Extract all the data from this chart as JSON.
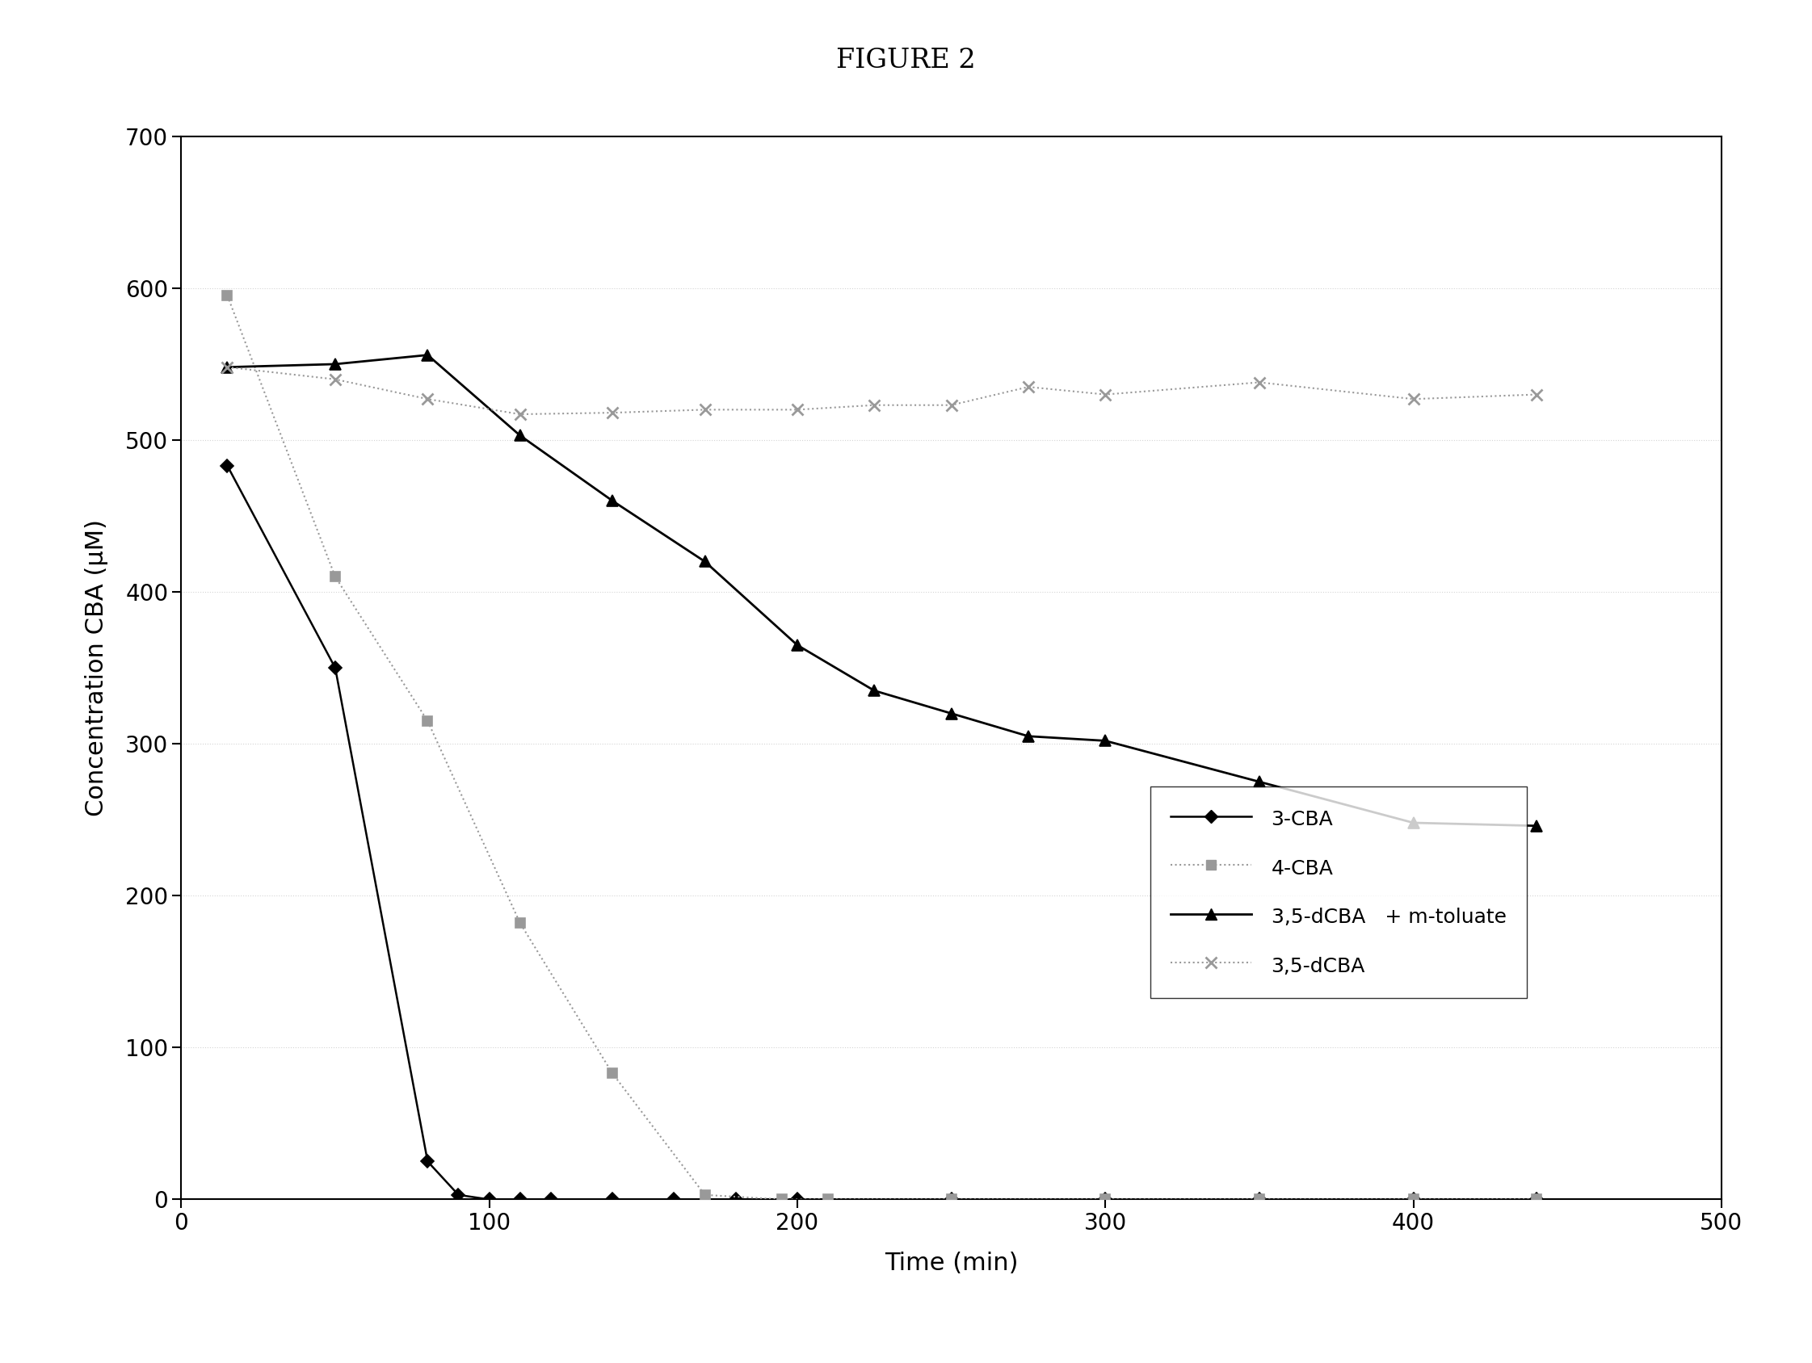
{
  "title": "FIGURE 2",
  "xlabel": "Time (min)",
  "ylabel": "Concentration CBA (μM)",
  "xlim": [
    0,
    500
  ],
  "ylim": [
    0,
    700
  ],
  "xticks": [
    0,
    100,
    200,
    300,
    400,
    500
  ],
  "yticks": [
    0,
    100,
    200,
    300,
    400,
    500,
    600,
    700
  ],
  "series": [
    {
      "label": "3-CBA",
      "color": "#000000",
      "linestyle": "-",
      "marker": "D",
      "markersize": 8,
      "linewidth": 1.8,
      "x": [
        15,
        50,
        80,
        90,
        100,
        110,
        120,
        140,
        160,
        180,
        200,
        250,
        300,
        350,
        400,
        440
      ],
      "y": [
        483,
        350,
        25,
        3,
        0,
        0,
        0,
        0,
        0,
        0,
        0,
        0,
        0,
        0,
        0,
        0
      ]
    },
    {
      "label": "4-CBA",
      "color": "#999999",
      "linestyle": ":",
      "marker": "s",
      "markersize": 8,
      "linewidth": 1.5,
      "x": [
        15,
        50,
        80,
        110,
        140,
        170,
        195,
        210,
        250,
        300,
        350,
        400,
        440
      ],
      "y": [
        595,
        410,
        315,
        182,
        83,
        3,
        0,
        0,
        0,
        0,
        0,
        0,
        0
      ]
    },
    {
      "label": "3,5-dCBA",
      "color": "#000000",
      "linestyle": "-",
      "marker": "^",
      "markersize": 10,
      "linewidth": 2.0,
      "x": [
        15,
        50,
        80,
        110,
        140,
        170,
        200,
        225,
        250,
        275,
        300,
        350,
        400,
        440
      ],
      "y": [
        548,
        550,
        556,
        503,
        460,
        420,
        365,
        335,
        320,
        305,
        302,
        275,
        248,
        246
      ],
      "legend_label": "3,5-dCBA  + m-toluate"
    },
    {
      "label": "3,5-dCBA_nodrug",
      "color": "#999999",
      "linestyle": ":",
      "marker": "x",
      "markersize": 10,
      "linewidth": 1.5,
      "x": [
        15,
        50,
        80,
        110,
        140,
        170,
        200,
        225,
        250,
        275,
        300,
        350,
        400,
        440
      ],
      "y": [
        548,
        540,
        527,
        517,
        518,
        520,
        520,
        523,
        523,
        535,
        530,
        538,
        527,
        530
      ],
      "legend_label": "3,5-dCBA"
    }
  ],
  "background_color": "#ffffff",
  "grid_color": "#aaaaaa"
}
